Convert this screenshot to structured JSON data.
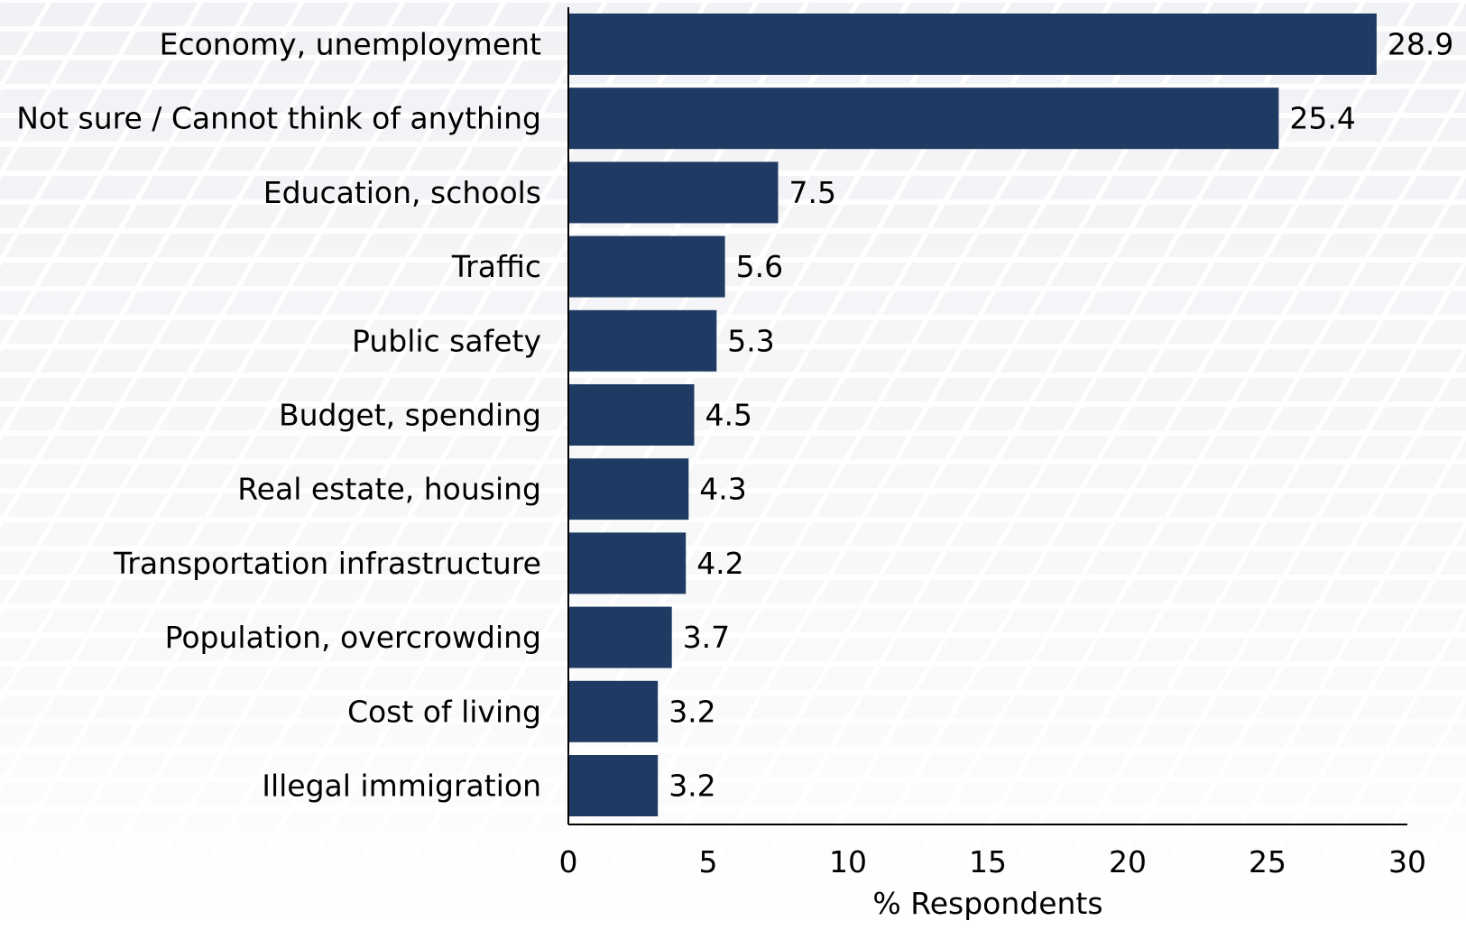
{
  "chart_data": {
    "type": "bar",
    "orientation": "horizontal",
    "title": "",
    "xlabel": "% Respondents",
    "ylabel": "",
    "xlim": [
      0,
      30
    ],
    "xticks": [
      0,
      5,
      10,
      15,
      20,
      25,
      30
    ],
    "grid": false,
    "categories": [
      "Economy, unemployment",
      "Not sure / Cannot think of anything",
      "Education, schools",
      "Traffic",
      "Public safety",
      "Budget, spending",
      "Real estate, housing",
      "Transportation infrastructure",
      "Population, overcrowding",
      "Cost of living",
      "Illegal immigration"
    ],
    "values": [
      28.9,
      25.4,
      7.5,
      5.6,
      5.3,
      4.5,
      4.3,
      4.2,
      3.7,
      3.2,
      3.2
    ],
    "value_labels": [
      "28.9",
      "25.4",
      "7.5",
      "5.6",
      "5.3",
      "4.5",
      "4.3",
      "4.2",
      "3.7",
      "3.2",
      "3.2"
    ],
    "bar_color": "#1f3b63",
    "axis_color": "#000000"
  }
}
